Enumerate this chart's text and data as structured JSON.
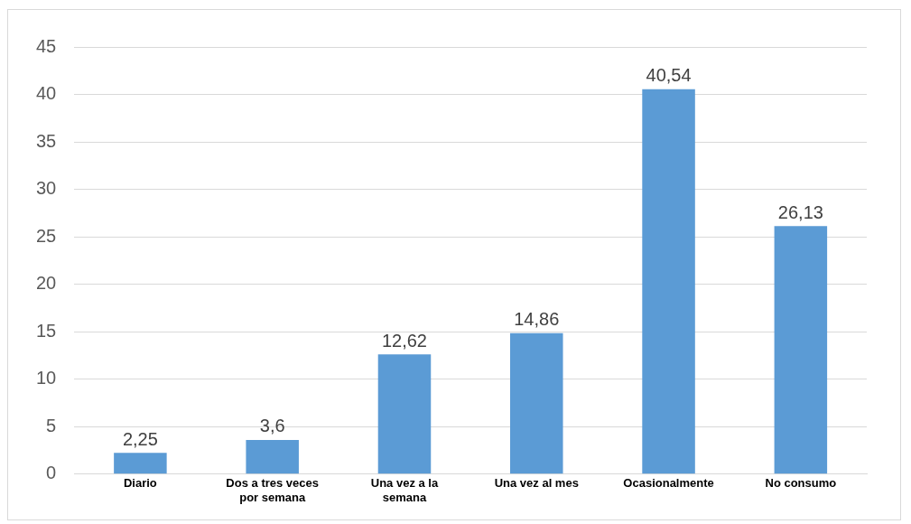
{
  "chart_data": {
    "type": "bar",
    "categories": [
      "Diario",
      "Dos a tres veces por semana",
      "Una vez a la semana",
      "Una vez al mes",
      "Ocasionalmente",
      "No consumo"
    ],
    "values": [
      2.25,
      3.6,
      12.62,
      14.86,
      40.54,
      26.13
    ],
    "value_labels": [
      "2,25",
      "3,6",
      "12,62",
      "14,86",
      "40,54",
      "26,13"
    ],
    "color": "#5b9bd5",
    "ylim": [
      0,
      45
    ],
    "yticks": [
      0,
      5,
      10,
      15,
      20,
      25,
      30,
      35,
      40,
      45
    ],
    "grid": "y",
    "legend": false
  }
}
